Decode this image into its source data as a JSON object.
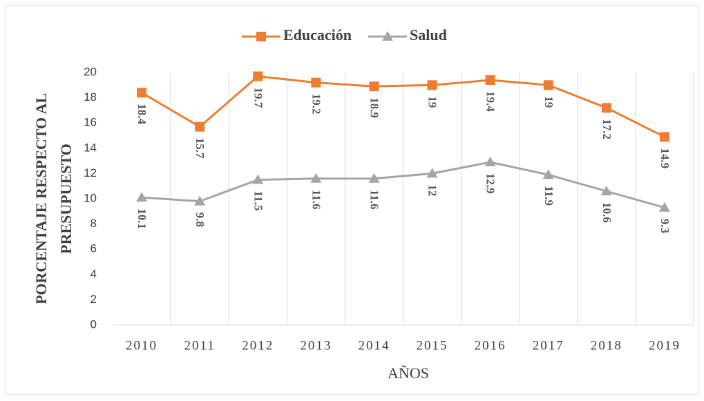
{
  "chart_data": {
    "type": "line",
    "y_label": [
      "PORCENTAJE RESPECTO AL",
      "PRESUPUESTO"
    ],
    "x_label": "AÑOS",
    "categories": [
      "2010",
      "2011",
      "2012",
      "2013",
      "2014",
      "2015",
      "2016",
      "2017",
      "2018",
      "2019"
    ],
    "series": [
      {
        "name": "Educación",
        "color": "#ED7D31",
        "marker": "square",
        "values": [
          18.4,
          15.7,
          19.7,
          19.2,
          18.9,
          19,
          19.4,
          19,
          17.2,
          14.9
        ]
      },
      {
        "name": "Salud",
        "color": "#A5A5A5",
        "marker": "triangle",
        "values": [
          10.1,
          9.8,
          11.5,
          11.6,
          11.6,
          12,
          12.9,
          11.9,
          10.6,
          9.3
        ]
      }
    ],
    "ylim": [
      0,
      20
    ],
    "yticks": [
      0,
      2,
      4,
      6,
      8,
      10,
      12,
      14,
      16,
      18,
      20
    ],
    "grid": "vertical",
    "legend": "top"
  }
}
